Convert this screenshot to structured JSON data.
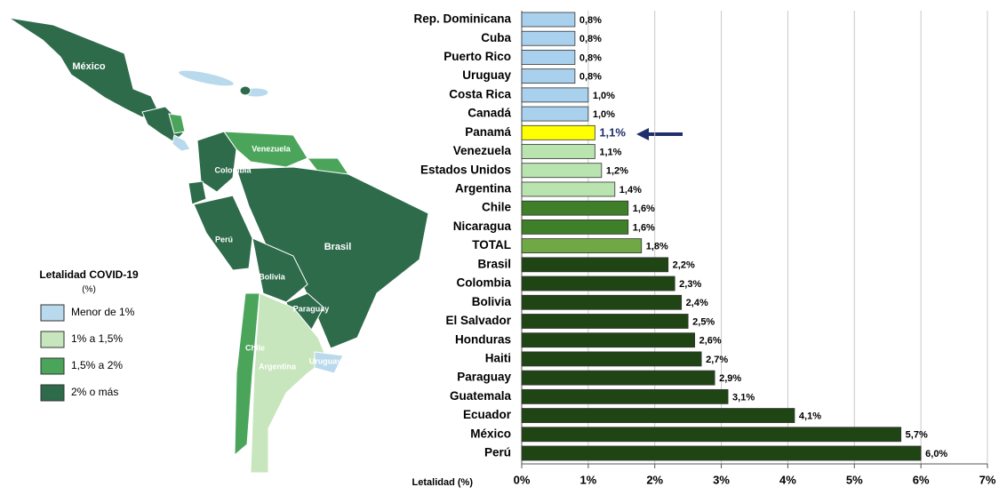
{
  "chart_data": {
    "type": "bar",
    "orientation": "horizontal",
    "x_label": "Letalidad (%)",
    "categories": [
      "Rep. Dominicana",
      "Cuba",
      "Puerto Rico",
      "Uruguay",
      "Costa Rica",
      "Canadá",
      "Panamá",
      "Venezuela",
      "Estados Unidos",
      "Argentina",
      "Chile",
      "Nicaragua",
      "TOTAL",
      "Brasil",
      "Colombia",
      "Bolivia",
      "El Salvador",
      "Honduras",
      "Haiti",
      "Paraguay",
      "Guatemala",
      "Ecuador",
      "México",
      "Perú"
    ],
    "values": [
      0.8,
      0.8,
      0.8,
      0.8,
      1.0,
      1.0,
      1.1,
      1.1,
      1.2,
      1.4,
      1.6,
      1.6,
      1.8,
      2.2,
      2.3,
      2.4,
      2.5,
      2.6,
      2.7,
      2.9,
      3.1,
      4.1,
      5.7,
      6.0
    ],
    "value_labels": [
      "0,8%",
      "0,8%",
      "0,8%",
      "0,8%",
      "1,0%",
      "1,0%",
      "1,1%",
      "1,1%",
      "1,2%",
      "1,4%",
      "1,6%",
      "1,6%",
      "1,8%",
      "2,2%",
      "2,3%",
      "2,4%",
      "2,5%",
      "2,6%",
      "2,7%",
      "2,9%",
      "3,1%",
      "4,1%",
      "5,7%",
      "6,0%"
    ],
    "colors": [
      "#a9d1ee",
      "#a9d1ee",
      "#a9d1ee",
      "#a9d1ee",
      "#a9d1ee",
      "#a9d1ee",
      "#ffff00",
      "#b9e4b0",
      "#b9e4b0",
      "#b9e4b0",
      "#3f7f2a",
      "#3f7f2a",
      "#6fa845",
      "#1f4514",
      "#1f4514",
      "#1f4514",
      "#1f4514",
      "#1f4514",
      "#1f4514",
      "#1f4514",
      "#1f4514",
      "#1f4514",
      "#1f4514",
      "#1f4514"
    ],
    "xlim": [
      0,
      7
    ],
    "xticks": [
      {
        "value": 0,
        "label": "0%"
      },
      {
        "value": 1,
        "label": "1%"
      },
      {
        "value": 2,
        "label": "2%"
      },
      {
        "value": 3,
        "label": "3%"
      },
      {
        "value": 4,
        "label": "4%"
      },
      {
        "value": 5,
        "label": "5%"
      },
      {
        "value": 6,
        "label": "6%"
      },
      {
        "value": 7,
        "label": "7%"
      }
    ],
    "grid": true
  },
  "map": {
    "legend_title": "Letalidad COVID-19",
    "legend_unit": "(%)",
    "legend": [
      {
        "label": "Menor de 1%",
        "color": "#b9d9ec"
      },
      {
        "label": "1% a 1,5%",
        "color": "#c8e6bd"
      },
      {
        "label": "1,5% a 2%",
        "color": "#4aa55a"
      },
      {
        "label": "2% o más",
        "color": "#2e6b4b"
      }
    ],
    "labels": [
      "México",
      "Venezuela",
      "Colombia",
      "Perú",
      "Brasil",
      "Bolivia",
      "Paraguay",
      "Chile",
      "Argentina",
      "Uruguay"
    ]
  }
}
